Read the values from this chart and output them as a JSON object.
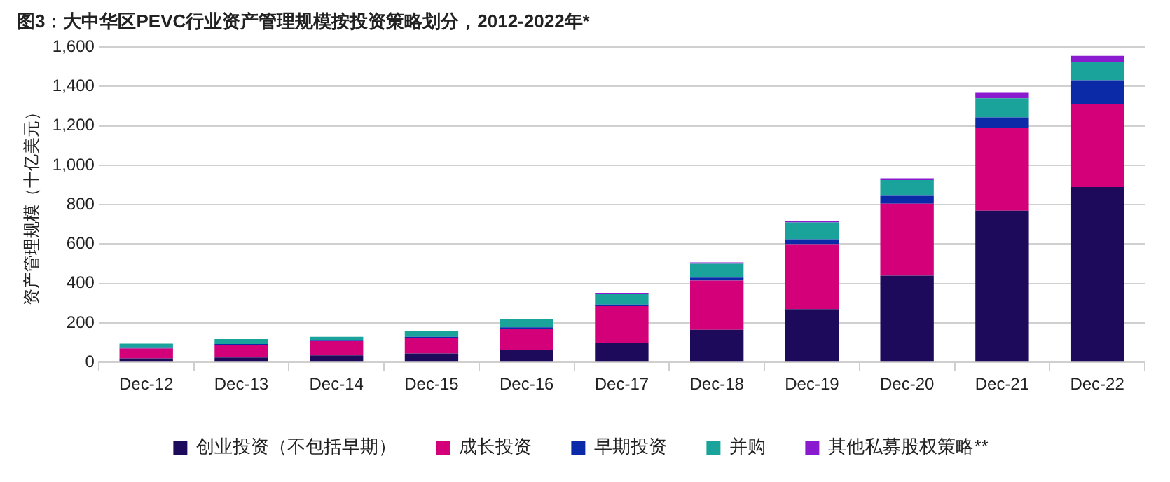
{
  "chart_data": {
    "type": "bar",
    "title": "图3：大中华区PEVC行业资产管理规模按投资策略划分，2012-2022年*",
    "ylabel": "资产管理规模（十亿美元）",
    "categories": [
      "Dec-12",
      "Dec-13",
      "Dec-14",
      "Dec-15",
      "Dec-16",
      "Dec-17",
      "Dec-18",
      "Dec-19",
      "Dec-20",
      "Dec-21",
      "Dec-22"
    ],
    "stacked": true,
    "ylim": [
      0,
      1600
    ],
    "yticks": [
      {
        "value": 0,
        "label": "0"
      },
      {
        "value": 200,
        "label": "200"
      },
      {
        "value": 400,
        "label": "400"
      },
      {
        "value": 600,
        "label": "600"
      },
      {
        "value": 800,
        "label": "800"
      },
      {
        "value": 1000,
        "label": "1,000"
      },
      {
        "value": 1200,
        "label": "1,200"
      },
      {
        "value": 1400,
        "label": "1,400"
      },
      {
        "value": 1600,
        "label": "1,600"
      }
    ],
    "grid": "y",
    "legend": "bottom",
    "series": [
      {
        "name": "创业投资（不包括早期）",
        "color": "#1e0a5a",
        "values": [
          20,
          25,
          35,
          45,
          65,
          100,
          165,
          270,
          440,
          770,
          890
        ]
      },
      {
        "name": "成长投资",
        "color": "#d4007a",
        "values": [
          50,
          65,
          72,
          80,
          105,
          185,
          250,
          330,
          365,
          420,
          420
        ]
      },
      {
        "name": "早期投资",
        "color": "#0a2aa8",
        "values": [
          3,
          3,
          3,
          5,
          8,
          8,
          15,
          25,
          40,
          53,
          122
        ]
      },
      {
        "name": "并购",
        "color": "#1aa39a",
        "values": [
          22,
          25,
          20,
          30,
          40,
          55,
          70,
          85,
          80,
          97,
          93
        ]
      },
      {
        "name": "其他私募股权策略**",
        "color": "#8a1ad0",
        "values": [
          null,
          null,
          null,
          null,
          null,
          5,
          7,
          5,
          9,
          28,
          30
        ]
      }
    ]
  }
}
